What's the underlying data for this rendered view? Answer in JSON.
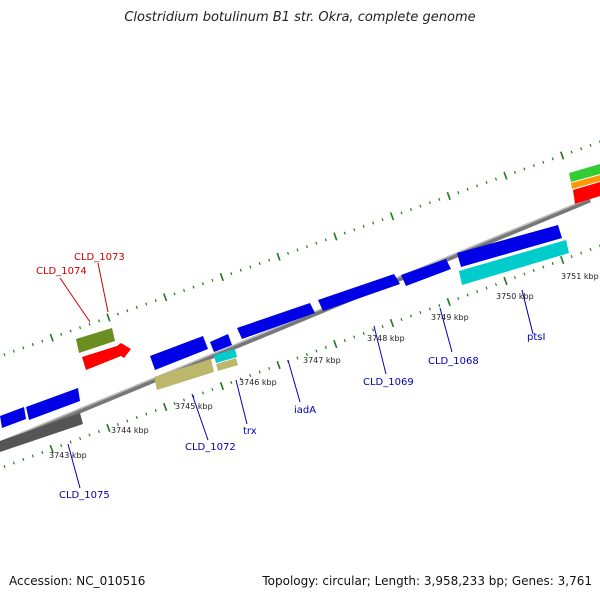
{
  "title": "Clostridium botulinum B1 str. Okra, complete genome",
  "footer": {
    "accession": "Accession: NC_010516",
    "topology": "Topology: circular; Length: 3,958,233 bp; Genes: 3,761"
  },
  "colors": {
    "backbone": "#8c8c8c",
    "tick": "#1f7a1f",
    "forward_label": "#0000b3",
    "reverse_label": "#cc0000",
    "cds_blue": "#0000e6",
    "cds_red": "#ff0000",
    "cds_olive": "#6b8e23",
    "cds_khaki": "#bdb76b",
    "cds_cyan": "#00cccc",
    "cds_gray": "#555555",
    "cds_green": "#33cc33",
    "cds_orange": "#ff9900"
  },
  "kbp_labels": [
    "3743 kbp",
    "3744 kbp",
    "3745 kbp",
    "3746 kbp",
    "3747 kbp",
    "3748 kbp",
    "3749 kbp",
    "3750 kbp",
    "3751 kbp"
  ],
  "gene_labels": [
    {
      "name": "CLD_1073",
      "strand": "reverse"
    },
    {
      "name": "CLD_1074",
      "strand": "reverse"
    },
    {
      "name": "CLD_1075",
      "strand": "forward"
    },
    {
      "name": "CLD_1072",
      "strand": "forward"
    },
    {
      "name": "trx",
      "strand": "forward"
    },
    {
      "name": "iadA",
      "strand": "forward"
    },
    {
      "name": "CLD_1069",
      "strand": "forward"
    },
    {
      "name": "CLD_1068",
      "strand": "forward"
    },
    {
      "name": "ptsI",
      "strand": "forward"
    }
  ]
}
